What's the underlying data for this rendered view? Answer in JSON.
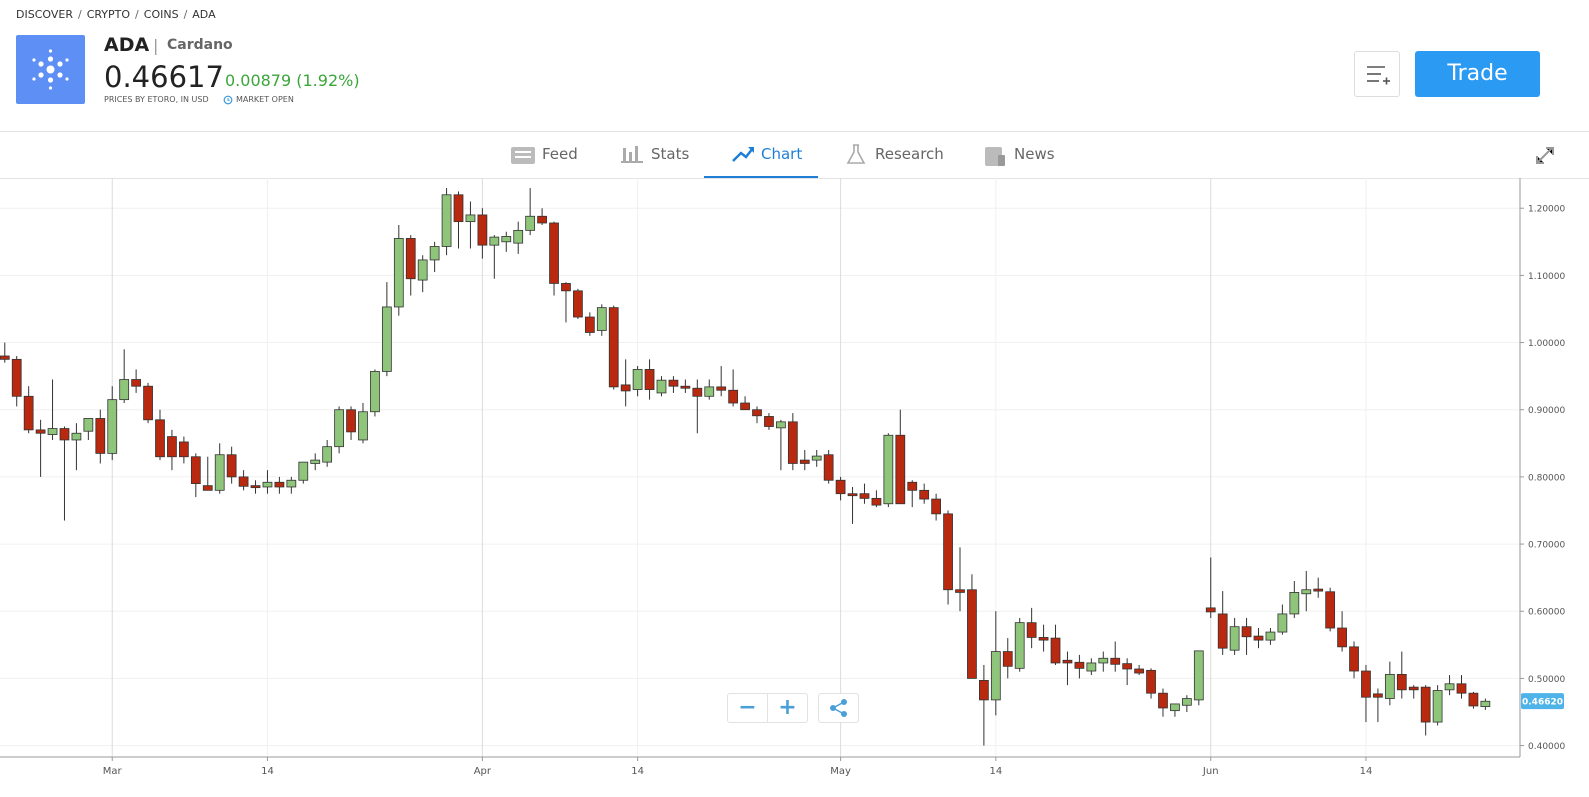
{
  "breadcrumb": [
    "DISCOVER",
    "CRYPTO",
    "COINS",
    "ADA"
  ],
  "instrument": {
    "symbol": "ADA",
    "name": "Cardano",
    "price": "0.46617",
    "change": "0.00879 (1.92%)",
    "source": "PRICES BY ETORO, IN USD",
    "status": "MARKET OPEN"
  },
  "trade_button": "Trade",
  "tabs": [
    "Feed",
    "Stats",
    "Chart",
    "Research",
    "News"
  ],
  "active_tab": 2,
  "chart_data": {
    "type": "candlestick",
    "up_color": "#8fc47b",
    "down_color": "#b8290f",
    "grid": true,
    "x": [
      -9,
      -8,
      -7,
      -6,
      -5,
      -4,
      -3,
      -2,
      -1,
      0,
      1,
      2,
      3,
      4,
      5,
      6,
      7,
      8,
      9,
      10,
      11,
      12,
      13,
      14,
      15,
      16,
      17,
      18,
      19,
      20,
      21,
      22,
      23,
      24,
      25,
      26,
      27,
      28,
      29,
      30,
      31,
      32,
      33,
      34,
      35,
      36,
      37,
      38,
      39,
      40,
      41,
      42,
      43,
      44,
      45,
      46,
      47,
      48,
      49,
      50,
      51,
      52,
      53,
      54,
      55,
      56,
      57,
      58,
      59,
      60,
      61,
      62,
      63,
      64,
      65,
      66,
      67,
      68,
      69,
      70,
      71,
      72,
      73,
      74,
      75,
      76,
      77,
      78,
      79,
      80,
      81,
      82,
      83,
      84,
      85,
      86,
      87,
      88,
      89,
      90,
      91,
      92,
      93,
      94,
      95,
      96,
      97,
      98,
      99,
      100,
      101,
      102,
      103,
      104,
      105,
      106,
      107,
      108,
      109,
      110,
      111,
      112,
      113,
      114,
      115
    ],
    "open": [
      0.98,
      0.975,
      0.92,
      0.87,
      0.863,
      0.872,
      0.855,
      0.868,
      0.887,
      0.835,
      0.915,
      0.945,
      0.935,
      0.885,
      0.86,
      0.852,
      0.83,
      0.787,
      0.78,
      0.833,
      0.8,
      0.787,
      0.785,
      0.792,
      0.785,
      0.795,
      0.82,
      0.822,
      0.845,
      0.9,
      0.855,
      0.897,
      0.957,
      1.053,
      1.155,
      1.093,
      1.123,
      1.143,
      1.22,
      1.18,
      1.19,
      1.145,
      1.15,
      1.148,
      1.167,
      1.188,
      1.178,
      1.088,
      1.077,
      1.038,
      1.018,
      1.052,
      0.937,
      0.93,
      0.96,
      0.925,
      0.944,
      0.935,
      0.932,
      0.92,
      0.934,
      0.929,
      0.91,
      0.9,
      0.89,
      0.873,
      0.882,
      0.825,
      0.825,
      0.833,
      0.795,
      0.775,
      0.775,
      0.768,
      0.76,
      0.862,
      0.792,
      0.78,
      0.767,
      0.745,
      0.632,
      0.632,
      0.497,
      0.468,
      0.54,
      0.515,
      0.583,
      0.561,
      0.56,
      0.527,
      0.524,
      0.511,
      0.523,
      0.53,
      0.522,
      0.514,
      0.512,
      0.478,
      0.452,
      0.46,
      0.468,
      0.605,
      0.596,
      0.542,
      0.577,
      0.563,
      0.557,
      0.569,
      0.596,
      0.626,
      0.633,
      0.629,
      0.575,
      0.547,
      0.511,
      0.477,
      0.47,
      0.506,
      0.487,
      0.487,
      0.435,
      0.483,
      0.492,
      0.478,
      0.458
    ],
    "high": [
      1.0,
      0.98,
      0.935,
      0.885,
      0.945,
      0.875,
      0.88,
      0.885,
      0.9,
      0.935,
      0.99,
      0.96,
      0.94,
      0.9,
      0.87,
      0.86,
      0.835,
      0.83,
      0.85,
      0.845,
      0.81,
      0.795,
      0.81,
      0.8,
      0.8,
      0.82,
      0.835,
      0.855,
      0.905,
      0.905,
      0.91,
      0.96,
      1.09,
      1.175,
      1.16,
      1.13,
      1.15,
      1.23,
      1.225,
      1.21,
      1.2,
      1.16,
      1.165,
      1.18,
      1.23,
      1.2,
      1.18,
      1.09,
      1.08,
      1.045,
      1.057,
      1.055,
      0.975,
      0.965,
      0.975,
      0.95,
      0.95,
      0.945,
      0.945,
      0.945,
      0.965,
      0.96,
      0.92,
      0.905,
      0.895,
      0.885,
      0.895,
      0.84,
      0.84,
      0.84,
      0.8,
      0.785,
      0.79,
      0.78,
      0.865,
      0.9,
      0.795,
      0.79,
      0.775,
      0.75,
      0.695,
      0.655,
      0.52,
      0.6,
      0.56,
      0.59,
      0.605,
      0.58,
      0.58,
      0.54,
      0.535,
      0.53,
      0.54,
      0.555,
      0.53,
      0.52,
      0.515,
      0.485,
      0.46,
      0.475,
      0.54,
      0.68,
      0.63,
      0.59,
      0.59,
      0.575,
      0.575,
      0.61,
      0.645,
      0.66,
      0.65,
      0.635,
      0.6,
      0.555,
      0.52,
      0.485,
      0.525,
      0.54,
      0.49,
      0.49,
      0.49,
      0.505,
      0.505,
      0.48,
      0.47
    ],
    "low": [
      0.97,
      0.905,
      0.865,
      0.8,
      0.855,
      0.735,
      0.81,
      0.855,
      0.82,
      0.825,
      0.91,
      0.925,
      0.88,
      0.825,
      0.81,
      0.82,
      0.77,
      0.78,
      0.775,
      0.79,
      0.78,
      0.775,
      0.775,
      0.775,
      0.775,
      0.79,
      0.81,
      0.815,
      0.835,
      0.855,
      0.85,
      0.89,
      0.95,
      1.04,
      1.07,
      1.075,
      1.105,
      1.13,
      1.14,
      1.14,
      1.125,
      1.095,
      1.135,
      1.132,
      1.16,
      1.175,
      1.07,
      1.03,
      1.035,
      1.01,
      1.01,
      0.93,
      0.905,
      0.92,
      0.915,
      0.92,
      0.925,
      0.925,
      0.865,
      0.915,
      0.92,
      0.905,
      0.9,
      0.88,
      0.87,
      0.81,
      0.81,
      0.81,
      0.815,
      0.79,
      0.765,
      0.73,
      0.76,
      0.755,
      0.755,
      0.76,
      0.755,
      0.76,
      0.735,
      0.61,
      0.6,
      0.5,
      0.4,
      0.445,
      0.5,
      0.51,
      0.545,
      0.54,
      0.52,
      0.49,
      0.5,
      0.505,
      0.51,
      0.51,
      0.49,
      0.505,
      0.47,
      0.443,
      0.443,
      0.45,
      0.46,
      0.59,
      0.535,
      0.535,
      0.535,
      0.545,
      0.55,
      0.565,
      0.59,
      0.6,
      0.62,
      0.57,
      0.54,
      0.5,
      0.435,
      0.435,
      0.46,
      0.47,
      0.47,
      0.415,
      0.43,
      0.475,
      0.47,
      0.455,
      0.453
    ],
    "close": [
      0.975,
      0.92,
      0.87,
      0.865,
      0.872,
      0.855,
      0.865,
      0.887,
      0.835,
      0.915,
      0.945,
      0.935,
      0.885,
      0.83,
      0.83,
      0.83,
      0.79,
      0.78,
      0.833,
      0.8,
      0.786,
      0.784,
      0.792,
      0.785,
      0.795,
      0.822,
      0.825,
      0.845,
      0.9,
      0.867,
      0.897,
      0.957,
      1.053,
      1.155,
      1.095,
      1.123,
      1.143,
      1.22,
      1.18,
      1.19,
      1.145,
      1.157,
      1.158,
      1.167,
      1.188,
      1.178,
      1.088,
      1.077,
      1.038,
      1.015,
      1.052,
      0.934,
      0.928,
      0.96,
      0.93,
      0.944,
      0.935,
      0.932,
      0.92,
      0.934,
      0.929,
      0.91,
      0.9,
      0.891,
      0.875,
      0.882,
      0.82,
      0.82,
      0.831,
      0.795,
      0.775,
      0.772,
      0.768,
      0.758,
      0.862,
      0.76,
      0.78,
      0.767,
      0.745,
      0.632,
      0.628,
      0.5,
      0.468,
      0.54,
      0.518,
      0.583,
      0.561,
      0.557,
      0.523,
      0.523,
      0.515,
      0.523,
      0.53,
      0.521,
      0.514,
      0.508,
      0.478,
      0.456,
      0.462,
      0.47,
      0.541,
      0.599,
      0.545,
      0.577,
      0.562,
      0.557,
      0.569,
      0.596,
      0.628,
      0.632,
      0.63,
      0.575,
      0.547,
      0.511,
      0.472,
      0.472,
      0.506,
      0.483,
      0.483,
      0.435,
      0.482,
      0.492,
      0.478,
      0.459,
      0.466
    ],
    "xlim": [
      -9.4,
      117.9
    ],
    "xticks": [
      {
        "value": 0,
        "label": "Mar"
      },
      {
        "value": 13,
        "label": "14"
      },
      {
        "value": 31,
        "label": "Apr"
      },
      {
        "value": 44,
        "label": "14"
      },
      {
        "value": 61,
        "label": "May"
      },
      {
        "value": 74,
        "label": "14"
      },
      {
        "value": 92,
        "label": "Jun"
      },
      {
        "value": 105,
        "label": "14"
      }
    ],
    "ylim": [
      0.383,
      1.242
    ],
    "yticks": [
      {
        "value": 0.4,
        "label": "0.40000"
      },
      {
        "value": 0.5,
        "label": "0.50000"
      },
      {
        "value": 0.6,
        "label": "0.60000"
      },
      {
        "value": 0.7,
        "label": "0.70000"
      },
      {
        "value": 0.8,
        "label": "0.80000"
      },
      {
        "value": 0.9,
        "label": "0.90000"
      },
      {
        "value": 1.0,
        "label": "1.00000"
      },
      {
        "value": 1.1,
        "label": "1.10000"
      },
      {
        "value": 1.2,
        "label": "1.20000"
      }
    ],
    "last_value": 0.4662,
    "last_value_label": "0.46620"
  }
}
